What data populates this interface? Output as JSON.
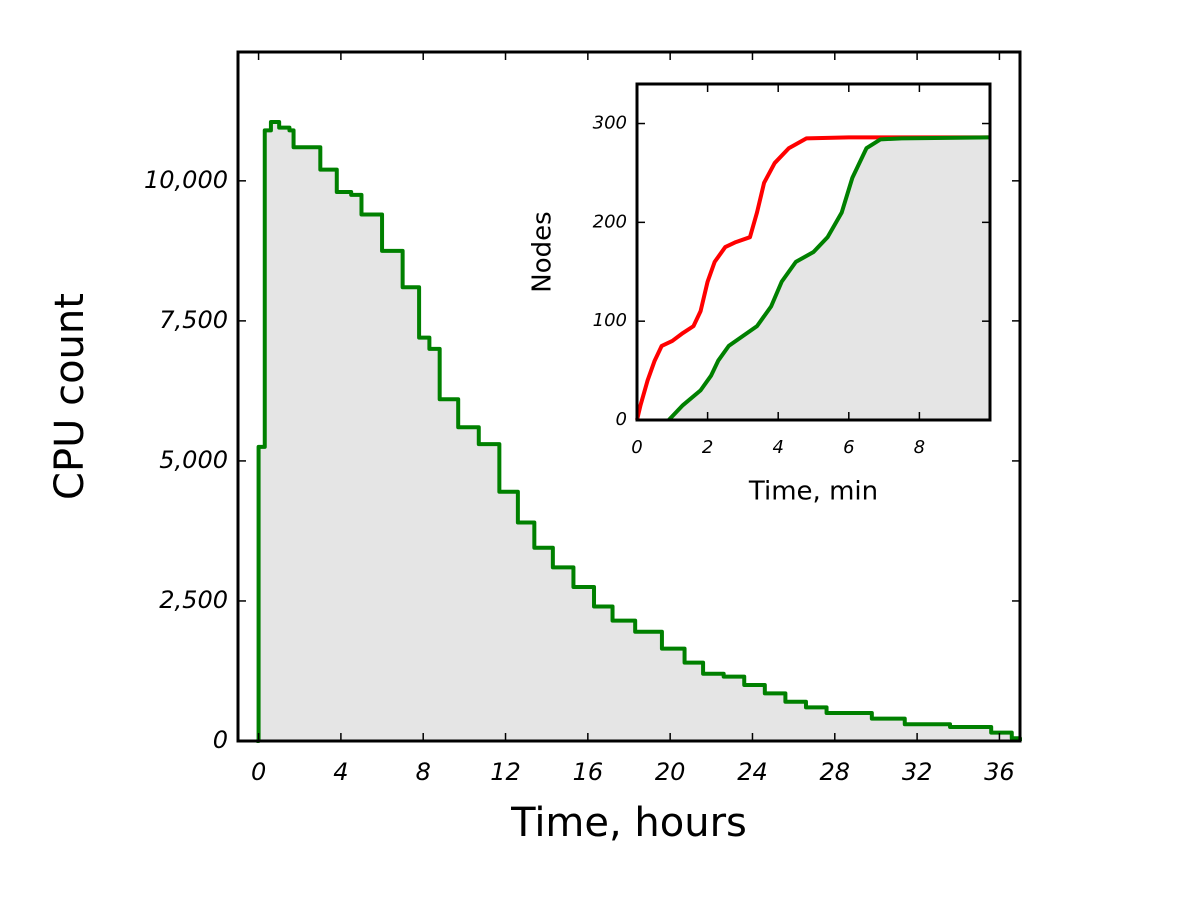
{
  "chart_data": [
    {
      "type": "line",
      "xlabel": "Time, hours",
      "ylabel": "CPU count",
      "x": [
        -0.1,
        0,
        0.3,
        0.6,
        1,
        1.5,
        1.7,
        2.8,
        3,
        3.8,
        4.5,
        5,
        6,
        7,
        7.8,
        8.3,
        8.8,
        9.7,
        10.7,
        11.7,
        12.6,
        13.4,
        14.3,
        15.3,
        16.3,
        17.2,
        18.3,
        19.6,
        20.7,
        21.6,
        22.6,
        23.6,
        24.6,
        25.6,
        26.6,
        27.6,
        28.6,
        29.8,
        31.4,
        33.6,
        35.6,
        36.6,
        37
      ],
      "series": [
        {
          "color": "#008000",
          "fill": "#e5e5e5",
          "values": [
            0,
            5250,
            10900,
            11050,
            10950,
            10900,
            10600,
            10600,
            10200,
            9800,
            9750,
            9400,
            8750,
            8100,
            7200,
            7000,
            6100,
            5600,
            5300,
            4450,
            3900,
            3450,
            3100,
            2750,
            2400,
            2150,
            1950,
            1650,
            1400,
            1200,
            1150,
            1000,
            850,
            700,
            600,
            500,
            500,
            400,
            300,
            250,
            150,
            50,
            0
          ]
        }
      ],
      "xlim": [
        -1,
        37
      ],
      "xticks": [
        0,
        4,
        8,
        12,
        16,
        20,
        24,
        28,
        32,
        36
      ],
      "ylim": [
        0,
        12300
      ],
      "yticks": [
        0,
        {
          "value": 2500,
          "label": "2,500"
        },
        {
          "value": 5000,
          "label": "5,000"
        },
        {
          "value": 7500,
          "label": "7,500"
        },
        {
          "value": 10000,
          "label": "10,000"
        }
      ]
    },
    {
      "type": "line",
      "xlabel": "Time, min",
      "ylabel": "Nodes",
      "series": [
        {
          "color": "#ff0000",
          "x": [
            0,
            0.1,
            0.3,
            0.5,
            0.7,
            1,
            1.3,
            1.6,
            1.8,
            2,
            2.2,
            2.5,
            2.8,
            3.2,
            3.4,
            3.6,
            3.9,
            4.3,
            4.8,
            6,
            10
          ],
          "values": [
            0,
            15,
            40,
            60,
            75,
            80,
            88,
            95,
            110,
            140,
            160,
            175,
            180,
            185,
            210,
            240,
            260,
            275,
            285,
            286,
            286
          ]
        },
        {
          "color": "#008000",
          "fill": "#e5e5e5",
          "x": [
            0.9,
            1.3,
            1.8,
            2.1,
            2.3,
            2.6,
            3,
            3.4,
            3.8,
            4.1,
            4.5,
            5,
            5.4,
            5.8,
            6.1,
            6.5,
            6.9,
            7.5,
            10
          ],
          "values": [
            0,
            15,
            30,
            45,
            60,
            75,
            85,
            95,
            115,
            140,
            160,
            170,
            185,
            210,
            245,
            275,
            284,
            285,
            286
          ]
        }
      ],
      "xlim": [
        0,
        10
      ],
      "xticks": [
        0,
        2,
        4,
        6,
        8
      ],
      "ylim": [
        0,
        340
      ],
      "yticks": [
        0,
        100,
        200,
        300
      ]
    }
  ]
}
